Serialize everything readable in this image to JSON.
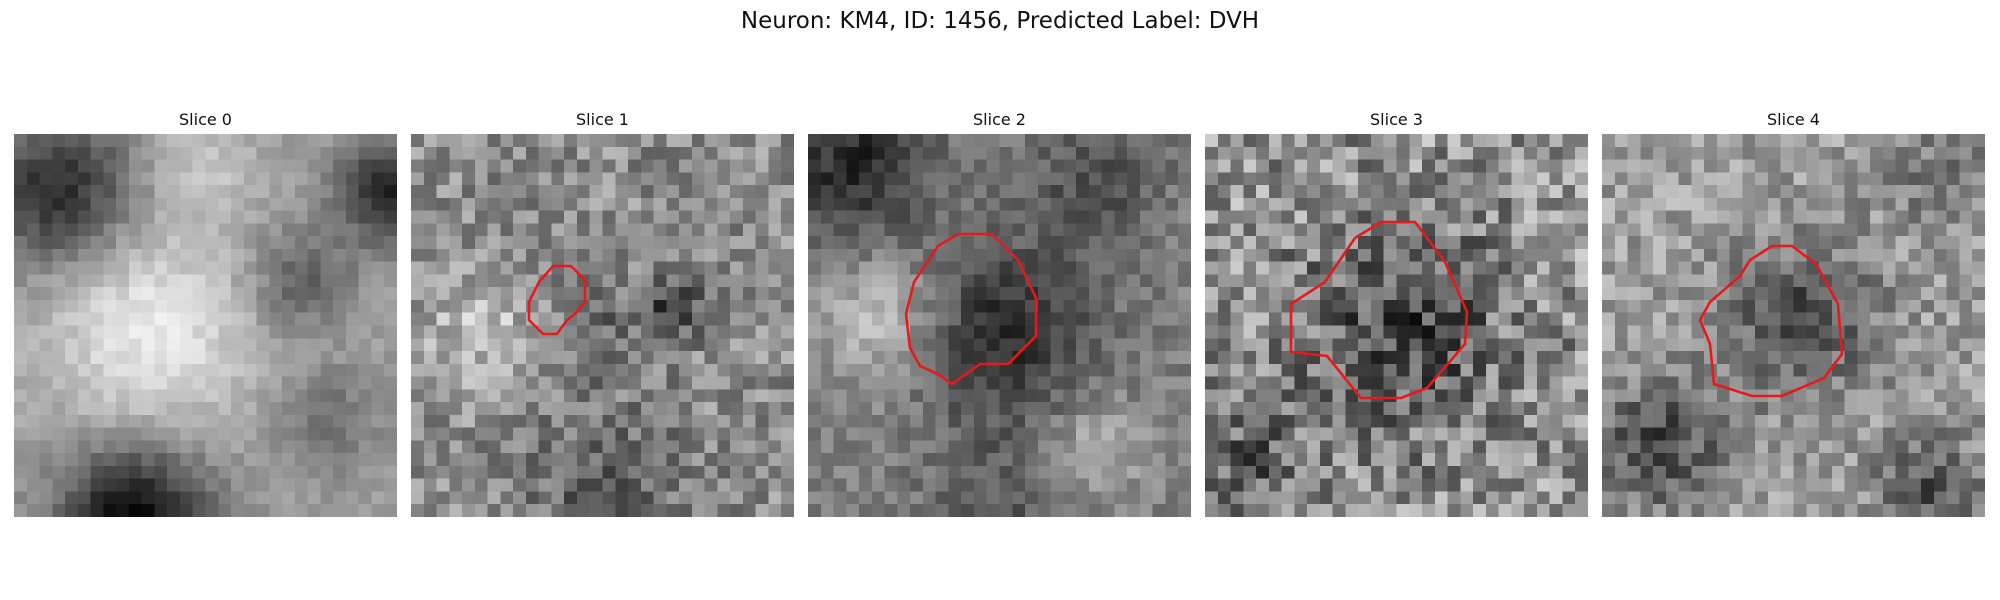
{
  "figure": {
    "title": "Neuron: KM4, ID: 1456, Predicted Label: DVH",
    "contour_color": "#e41a1c"
  },
  "slices": [
    {
      "title": "Slice 0"
    },
    {
      "title": "Slice 1"
    },
    {
      "title": "Slice 2"
    },
    {
      "title": "Slice 3"
    },
    {
      "title": "Slice 4"
    }
  ]
}
